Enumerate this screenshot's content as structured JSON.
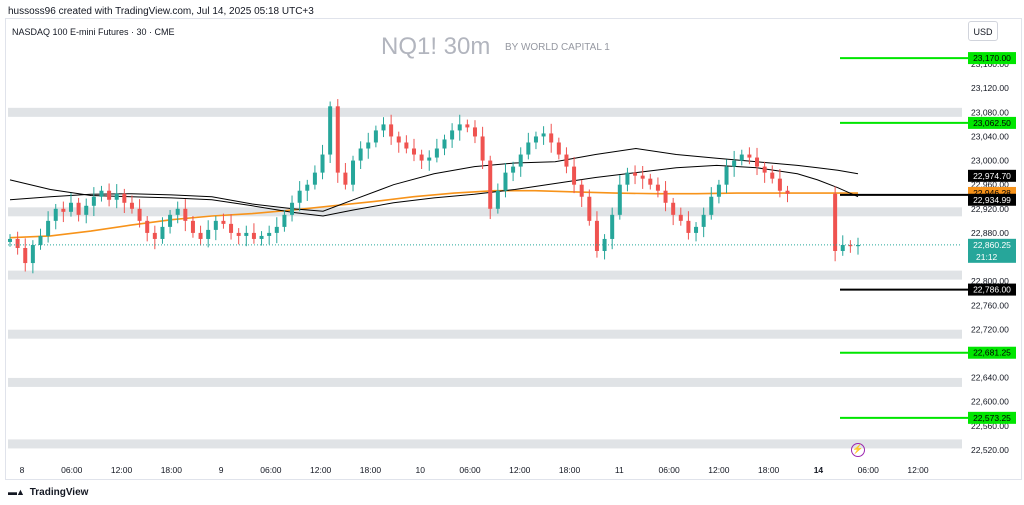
{
  "header": {
    "attribution": "hussoss96 created with TradingView.com, Jul 14, 2025 05:18 UTC+3"
  },
  "symbol_line": "NASDAQ 100 E-mini Futures · 30 · CME",
  "watermark": {
    "title": "NQ1! 30m",
    "subtitle": "BY WORLD CAPITAL 1"
  },
  "currency": "USD",
  "footer": {
    "brand": "TradingView",
    "logo": "tradingview-logo-icon"
  },
  "flash_icon": "lightning-icon",
  "chart_data": {
    "type": "candlestick",
    "title": "NQ1! 30m",
    "ylim": [
      22500,
      23200
    ],
    "y_ticks": [
      "23,160.00",
      "23,120.00",
      "23,080.00",
      "23,040.00",
      "23,000.00",
      "22,960.00",
      "22,920.00",
      "22,880.00",
      "22,840.00",
      "22,800.00",
      "22,760.00",
      "22,720.00",
      "22,680.00",
      "22,640.00",
      "22,600.00",
      "22,560.00",
      "22,520.00"
    ],
    "x_ticks": [
      {
        "label": "8",
        "bold": false
      },
      {
        "label": "06:00",
        "bold": false
      },
      {
        "label": "12:00",
        "bold": false
      },
      {
        "label": "18:00",
        "bold": false
      },
      {
        "label": "9",
        "bold": false
      },
      {
        "label": "06:00",
        "bold": false
      },
      {
        "label": "12:00",
        "bold": false
      },
      {
        "label": "18:00",
        "bold": false
      },
      {
        "label": "10",
        "bold": false
      },
      {
        "label": "06:00",
        "bold": false
      },
      {
        "label": "12:00",
        "bold": false
      },
      {
        "label": "18:00",
        "bold": false
      },
      {
        "label": "11",
        "bold": false
      },
      {
        "label": "06:00",
        "bold": false
      },
      {
        "label": "12:00",
        "bold": false
      },
      {
        "label": "18:00",
        "bold": false
      },
      {
        "label": "14",
        "bold": true
      },
      {
        "label": "06:00",
        "bold": false
      },
      {
        "label": "12:00",
        "bold": false
      }
    ],
    "support_zones": [
      23080,
      22915,
      22810,
      22712,
      22632,
      22530
    ],
    "price_levels": [
      {
        "label": "23,170.00",
        "value": 23170,
        "color": "#00e600"
      },
      {
        "label": "23,062.50",
        "value": 23062.5,
        "color": "#00e600"
      },
      {
        "label": "22,943.00",
        "value": 22943,
        "color": "#000000"
      },
      {
        "label": "22,786.00",
        "value": 22786,
        "color": "#000000"
      },
      {
        "label": "22,681.25",
        "value": 22681.25,
        "color": "#00e600"
      },
      {
        "label": "22,573.25",
        "value": 22573.25,
        "color": "#00e600"
      }
    ],
    "axis_badges": [
      {
        "label": "22,974.70",
        "value": 22974.7,
        "bg": "#000000",
        "fg": "#ffffff"
      },
      {
        "label": "22,946.28",
        "value": 22946.28,
        "bg": "#f7931a",
        "fg": "#000000"
      },
      {
        "label": "22,934.99",
        "value": 22934.99,
        "bg": "#000000",
        "fg": "#ffffff"
      }
    ],
    "current_price": {
      "label": "22,860.25",
      "countdown": "21:12",
      "value": 22860.25,
      "color": "#26a69a"
    },
    "series": [
      {
        "name": "",
        "color": "#f7931a",
        "points": [
          [
            0,
            22872
          ],
          [
            40,
            22875
          ],
          [
            80,
            22883
          ],
          [
            120,
            22893
          ],
          [
            160,
            22902
          ],
          [
            200,
            22908
          ],
          [
            240,
            22912
          ],
          [
            280,
            22918
          ],
          [
            320,
            22925
          ],
          [
            360,
            22932
          ],
          [
            400,
            22940
          ],
          [
            440,
            22946
          ],
          [
            480,
            22950
          ],
          [
            520,
            22950
          ],
          [
            560,
            22948
          ],
          [
            600,
            22946
          ],
          [
            640,
            22945
          ],
          [
            680,
            22945
          ],
          [
            720,
            22946
          ],
          [
            760,
            22946
          ],
          [
            800,
            22946
          ],
          [
            840,
            22946
          ]
        ]
      },
      {
        "name": "",
        "color": "#000000",
        "points": [
          [
            0,
            22968
          ],
          [
            40,
            22952
          ],
          [
            80,
            22942
          ],
          [
            120,
            22940
          ],
          [
            160,
            22938
          ],
          [
            200,
            22935
          ],
          [
            240,
            22925
          ],
          [
            280,
            22914
          ],
          [
            310,
            22908
          ],
          [
            340,
            22918
          ],
          [
            380,
            22930
          ],
          [
            420,
            22938
          ],
          [
            460,
            22944
          ],
          [
            500,
            22952
          ],
          [
            540,
            22962
          ],
          [
            580,
            22972
          ],
          [
            620,
            22980
          ],
          [
            660,
            22988
          ],
          [
            700,
            22992
          ],
          [
            740,
            22988
          ],
          [
            780,
            22978
          ],
          [
            800,
            22968
          ],
          [
            820,
            22955
          ],
          [
            840,
            22940
          ]
        ]
      },
      {
        "name": "",
        "color": "#000000",
        "points": [
          [
            0,
            22935
          ],
          [
            40,
            22940
          ],
          [
            80,
            22944
          ],
          [
            120,
            22945
          ],
          [
            160,
            22943
          ],
          [
            200,
            22940
          ],
          [
            240,
            22928
          ],
          [
            280,
            22920
          ],
          [
            310,
            22916
          ],
          [
            340,
            22935
          ],
          [
            380,
            22960
          ],
          [
            420,
            22978
          ],
          [
            460,
            22990
          ],
          [
            500,
            22996
          ],
          [
            540,
            22998
          ],
          [
            580,
            23010
          ],
          [
            620,
            23020
          ],
          [
            660,
            23010
          ],
          [
            700,
            23004
          ],
          [
            740,
            22998
          ],
          [
            780,
            22992
          ],
          [
            800,
            22988
          ],
          [
            820,
            22984
          ],
          [
            840,
            22978
          ]
        ]
      }
    ],
    "closes": [
      22870,
      22855,
      22830,
      22860,
      22875,
      22900,
      22920,
      22915,
      22930,
      22910,
      22925,
      22940,
      22950,
      22935,
      22945,
      22930,
      22920,
      22900,
      22880,
      22870,
      22890,
      22910,
      22920,
      22900,
      22880,
      22870,
      22885,
      22900,
      22895,
      22880,
      22875,
      22880,
      22870,
      22875,
      22880,
      22890,
      22910,
      22930,
      22950,
      22960,
      22980,
      23010,
      23090,
      22980,
      22960,
      23000,
      23020,
      23030,
      23050,
      23060,
      23040,
      23030,
      23020,
      23010,
      23000,
      23005,
      23020,
      23035,
      23050,
      23060,
      23055,
      23040,
      23000,
      22920,
      22950,
      22980,
      22990,
      23010,
      23030,
      23040,
      23045,
      23030,
      23010,
      22990,
      22960,
      22940,
      22900,
      22850,
      22870,
      22910,
      22960,
      22980,
      22975,
      22970,
      22960,
      22950,
      22930,
      22910,
      22900,
      22880,
      22890,
      22910,
      22940,
      22960,
      22990,
      23000,
      23010,
      23005,
      22990,
      22980,
      22970,
      22950,
      22945,
      22850,
      22860,
      22858,
      22860
    ]
  }
}
